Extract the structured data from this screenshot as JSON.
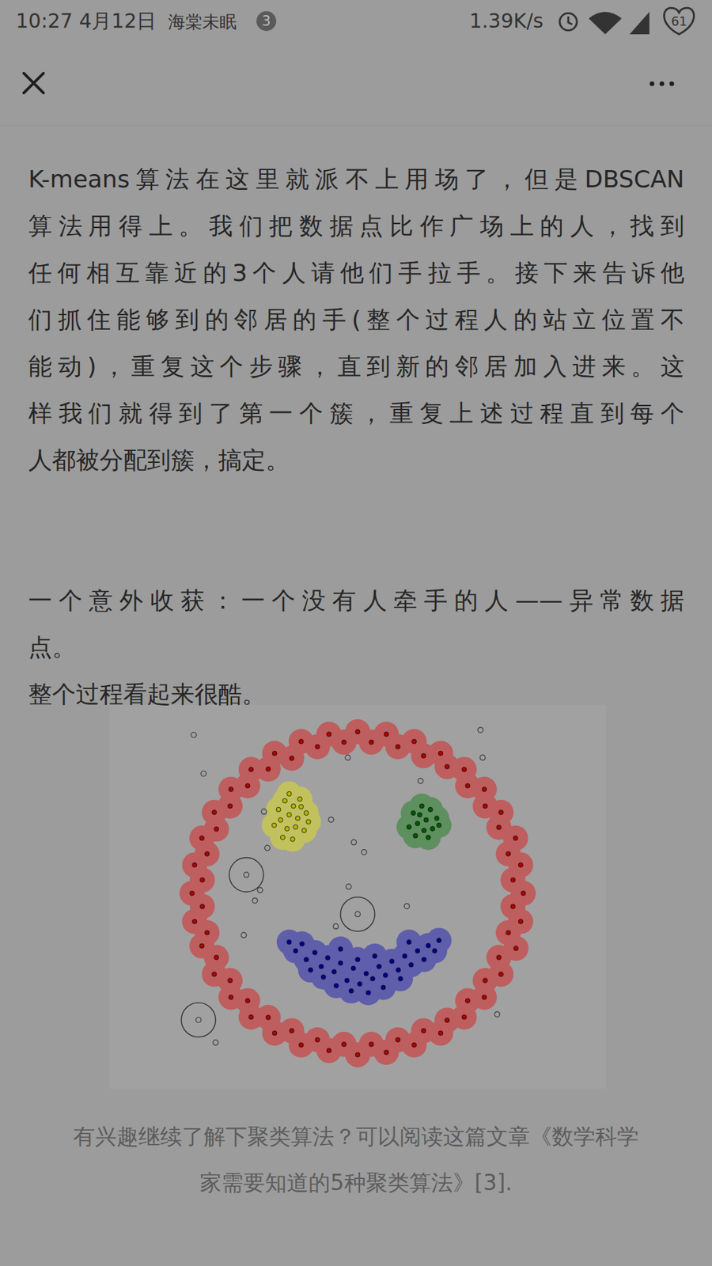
{
  "status_bar": {
    "time": "10:27",
    "date": "4月12日",
    "app": "海棠未眠",
    "badge": "3",
    "speed": "1.39K/s",
    "battery": "61"
  },
  "paragraphs": [
    {
      "lines": [
        "K-means算法在这里就派不上用场了，但是DBSCAN",
        "算法用得上。我们把数据点比作广场上的人，找到",
        "任何相互靠近的3个人请他们手拉手。接下来告诉他",
        "们抓住能够到的邻居的手(整个过程人的站立位置不",
        "能动)，重复这个步骤，直到新的邻居加入进来。这",
        "样我们就得到了第一个簇，重复上述过程直到每个",
        "人都被分配到簇，搞定。"
      ]
    },
    {
      "lines": [
        "一个意外收获：一个没有人牵手的人——异常数据",
        "点。"
      ]
    },
    {
      "lines": [
        "整个过程看起来很酷。"
      ]
    }
  ],
  "chart_data": {
    "type": "scatter",
    "xlim": [
      -8,
      108
    ],
    "ylim": [
      -6,
      104
    ],
    "tick_labels": false,
    "grid": false,
    "series": [
      {
        "color": "#b00000",
        "marker": "circle",
        "x": [
          88.7,
          86.3,
          88.1,
          85.2,
          86.9,
          83.0,
          83.5,
          79.8,
          79.6,
          75.7,
          74.9,
          70.9,
          69.4,
          65.4,
          63.2,
          59.4,
          56.7,
          53.2,
          50.0,
          46.8,
          43.3,
          40.6,
          36.8,
          34.6,
          30.6,
          29.1,
          25.1,
          24.3,
          20.4,
          20.2,
          16.5,
          17.0,
          13.6,
          14.8,
          11.9,
          13.7,
          11.3,
          13.7,
          11.9,
          14.8,
          13.6,
          17.0,
          16.5,
          20.2,
          20.4,
          24.3,
          25.1,
          29.1,
          30.6,
          34.6,
          36.8,
          40.6,
          43.3,
          46.8,
          50.0,
          53.2,
          56.7,
          59.4,
          63.2,
          65.4,
          69.4,
          70.9,
          74.9,
          75.7,
          79.6,
          79.8,
          83.5,
          83.0,
          87.0,
          85.2,
          88.1,
          86.3
        ],
        "y": [
          50.0,
          53.8,
          58.1,
          61.3,
          65.8,
          68.9,
          73.2,
          75.0,
          79.8,
          80.8,
          85.5,
          86.3,
          90.1,
          89.4,
          93.5,
          92.0,
          95.6,
          93.3,
          96.3,
          93.3,
          95.6,
          92.0,
          93.5,
          88.7,
          90.1,
          85.6,
          85.5,
          80.8,
          79.8,
          75.0,
          73.2,
          68.4,
          65.8,
          61.3,
          58.1,
          53.8,
          50.0,
          46.2,
          41.9,
          38.7,
          34.9,
          31.6,
          26.8,
          25.0,
          20.2,
          19.2,
          14.5,
          14.4,
          9.9,
          10.6,
          6.5,
          8.0,
          4.9,
          6.7,
          3.7,
          6.7,
          4.4,
          8.0,
          6.5,
          10.6,
          9.9,
          13.6,
          14.5,
          19.2,
          20.2,
          25.0,
          26.8,
          31.6,
          34.2,
          38.7,
          41.9,
          46.2
        ]
      },
      {
        "color": "#b4b400",
        "marker": "circle",
        "x": [
          31.5,
          33,
          35,
          36.5,
          34,
          32,
          36,
          38,
          33.5,
          35.5,
          37.5,
          32.5,
          34.8,
          30.5,
          36.8,
          34,
          38.5
        ],
        "y": [
          74,
          76.5,
          75,
          77,
          72.5,
          71,
          71.5,
          73,
          68.5,
          69,
          68,
          66,
          65.5,
          69.5,
          74.8,
          78.5,
          70.5
        ]
      },
      {
        "color": "#005a00",
        "marker": "circle",
        "x": [
          63,
          65,
          67,
          68.5,
          66,
          64,
          62,
          65.5,
          67.5,
          69,
          63.5,
          66.5,
          64.5
        ],
        "y": [
          73,
          75,
          74,
          71.5,
          71,
          70,
          69,
          68,
          68.5,
          69.5,
          66.5,
          66,
          72.5
        ]
      },
      {
        "color": "#00008c",
        "marker": "circle",
        "x": [
          34,
          35.5,
          37,
          38,
          40,
          41.5,
          43,
          44.5,
          46,
          47.5,
          49,
          50.5,
          52,
          53.5,
          55,
          56.5,
          58,
          59.5,
          61,
          62.5,
          64,
          65.5,
          66.5,
          68,
          69,
          45,
          48.5,
          52.5,
          56,
          42,
          60,
          39,
          50,
          54,
          46,
          62
        ],
        "y": [
          36,
          33.5,
          35.5,
          31,
          33,
          29,
          31.5,
          27.5,
          30,
          25,
          28.5,
          24,
          27,
          25.5,
          29,
          26.5,
          30.5,
          28,
          32,
          29.5,
          33.5,
          31,
          35,
          33.5,
          36.5,
          23.5,
          22,
          21.5,
          23,
          26,
          25.5,
          28,
          31,
          32,
          34,
          36
        ]
      },
      {
        "color": "#3a3a3a",
        "marker": "circle-open",
        "x": [
          11.7,
          78.7,
          14.0,
          47.7,
          79.2,
          64.7,
          43.8,
          28.1,
          49.1,
          51.5,
          28.9,
          27.2,
          26.0,
          47.9,
          61.5,
          44.9,
          23.4,
          16.8,
          82.6
        ],
        "y": [
          95.4,
          96.8,
          84.3,
          88.9,
          88.9,
          82.2,
          71.1,
          73.4,
          64.6,
          61.8,
          63.0,
          50.9,
          47.9,
          51.9,
          46.3,
          40.5,
          38.0,
          7.2,
          15.3
        ]
      },
      {
        "color": "#3a3a3a",
        "marker": "ringed",
        "x": [
          24.0,
          50.0,
          12.8
        ],
        "y": [
          55.3,
          44.0,
          13.7
        ]
      }
    ]
  },
  "caption": {
    "lines": [
      "有兴趣继续了解下聚类算法？可以阅读这篇文章《数学科学",
      "家需要知道的5种聚类算法》[3]."
    ]
  }
}
